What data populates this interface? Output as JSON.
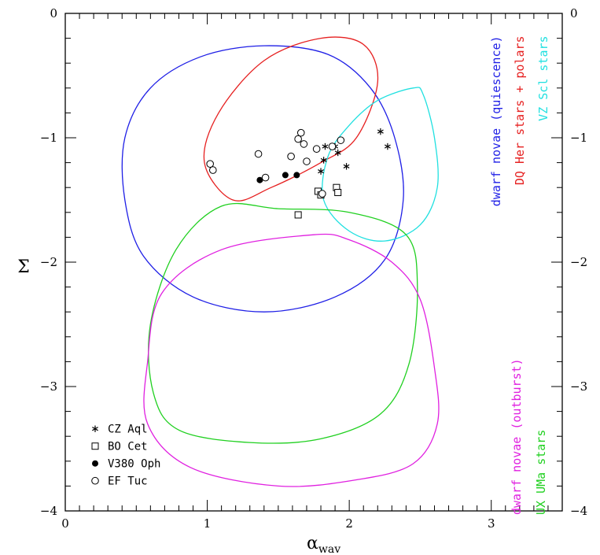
{
  "chart_data": {
    "type": "scatter",
    "title": "",
    "xlabel": "α",
    "xlabel_sub": "wav",
    "ylabel": "Σ",
    "xlim": [
      0,
      3.5
    ],
    "ylim": [
      -4,
      0
    ],
    "xticks": [
      0,
      1,
      2,
      3
    ],
    "yticks": [
      0,
      -1,
      -2,
      -3,
      -4
    ],
    "series": [
      {
        "name": "CZ Aql",
        "marker": "asterisk",
        "points": [
          [
            1.83,
            -1.07
          ],
          [
            1.82,
            -1.18
          ],
          [
            1.8,
            -1.27
          ],
          [
            1.92,
            -1.12
          ],
          [
            1.9,
            -1.07
          ],
          [
            1.98,
            -1.23
          ],
          [
            2.22,
            -0.95
          ],
          [
            2.27,
            -1.07
          ]
        ]
      },
      {
        "name": "BO Cet",
        "marker": "open-square",
        "points": [
          [
            1.64,
            -1.62
          ],
          [
            1.78,
            -1.43
          ],
          [
            1.8,
            -1.46
          ],
          [
            1.91,
            -1.4
          ],
          [
            1.92,
            -1.44
          ]
        ]
      },
      {
        "name": "V380 Oph",
        "marker": "filled-circle",
        "points": [
          [
            1.37,
            -1.34
          ],
          [
            1.55,
            -1.3
          ],
          [
            1.63,
            -1.3
          ]
        ]
      },
      {
        "name": "EF Tuc",
        "marker": "open-circle",
        "points": [
          [
            1.02,
            -1.21
          ],
          [
            1.04,
            -1.26
          ],
          [
            1.36,
            -1.13
          ],
          [
            1.41,
            -1.32
          ],
          [
            1.59,
            -1.15
          ],
          [
            1.64,
            -1.01
          ],
          [
            1.66,
            -0.96
          ],
          [
            1.68,
            -1.05
          ],
          [
            1.7,
            -1.19
          ],
          [
            1.77,
            -1.09
          ],
          [
            1.81,
            -1.45
          ],
          [
            1.88,
            -1.07
          ],
          [
            1.94,
            -1.02
          ]
        ]
      }
    ],
    "regions": [
      {
        "name": "dwarf novae (quiescence)",
        "color": "#1f1fe6",
        "outline": [
          [
            1.4,
            -0.26
          ],
          [
            0.95,
            -0.35
          ],
          [
            0.6,
            -0.6
          ],
          [
            0.42,
            -1.0
          ],
          [
            0.42,
            -1.5
          ],
          [
            0.55,
            -1.95
          ],
          [
            0.9,
            -2.28
          ],
          [
            1.4,
            -2.4
          ],
          [
            1.9,
            -2.28
          ],
          [
            2.25,
            -1.98
          ],
          [
            2.38,
            -1.5
          ],
          [
            2.32,
            -1.0
          ],
          [
            2.15,
            -0.6
          ],
          [
            1.85,
            -0.33
          ]
        ]
      },
      {
        "name": "DQ Her stars + polars",
        "color": "#e62020",
        "outline": [
          [
            1.8,
            -0.2
          ],
          [
            1.4,
            -0.38
          ],
          [
            1.08,
            -0.8
          ],
          [
            0.98,
            -1.2
          ],
          [
            1.18,
            -1.5
          ],
          [
            1.45,
            -1.4
          ],
          [
            1.8,
            -1.2
          ],
          [
            2.05,
            -1.0
          ],
          [
            2.2,
            -0.55
          ],
          [
            2.1,
            -0.25
          ]
        ]
      },
      {
        "name": "VZ Scl stars",
        "color": "#20e0e0",
        "outline": [
          [
            2.45,
            -0.6
          ],
          [
            2.2,
            -0.7
          ],
          [
            2.0,
            -0.9
          ],
          [
            1.85,
            -1.15
          ],
          [
            1.82,
            -1.5
          ],
          [
            2.0,
            -1.75
          ],
          [
            2.25,
            -1.83
          ],
          [
            2.5,
            -1.7
          ],
          [
            2.62,
            -1.4
          ],
          [
            2.6,
            -1.0
          ],
          [
            2.52,
            -0.65
          ]
        ]
      },
      {
        "name": "UX UMa stars",
        "color": "#20d020",
        "outline": [
          [
            1.1,
            -1.55
          ],
          [
            0.78,
            -1.9
          ],
          [
            0.6,
            -2.5
          ],
          [
            0.62,
            -3.05
          ],
          [
            0.8,
            -3.35
          ],
          [
            1.3,
            -3.45
          ],
          [
            1.8,
            -3.42
          ],
          [
            2.22,
            -3.22
          ],
          [
            2.42,
            -2.82
          ],
          [
            2.48,
            -2.2
          ],
          [
            2.4,
            -1.78
          ],
          [
            2.0,
            -1.6
          ],
          [
            1.5,
            -1.57
          ]
        ]
      },
      {
        "name": "dwarf novae (outburst)",
        "color": "#e020e0",
        "outline": [
          [
            1.75,
            -1.78
          ],
          [
            1.1,
            -1.9
          ],
          [
            0.68,
            -2.25
          ],
          [
            0.58,
            -2.8
          ],
          [
            0.58,
            -3.3
          ],
          [
            0.88,
            -3.65
          ],
          [
            1.5,
            -3.8
          ],
          [
            2.05,
            -3.75
          ],
          [
            2.45,
            -3.62
          ],
          [
            2.62,
            -3.3
          ],
          [
            2.6,
            -2.85
          ],
          [
            2.5,
            -2.3
          ],
          [
            2.3,
            -2.0
          ],
          [
            2.0,
            -1.82
          ]
        ]
      }
    ],
    "legend": {
      "position": "bottom-left",
      "entries": [
        "CZ Aql",
        "BO Cet",
        "V380 Oph",
        "EF Tuc"
      ]
    },
    "annotations": [
      {
        "text": "dwarf novae (quiescence)",
        "color": "#1f1fe6",
        "position": "top-right"
      },
      {
        "text": "DQ Her stars + polars",
        "color": "#e62020",
        "position": "top-right"
      },
      {
        "text": "VZ Scl stars",
        "color": "#20e0e0",
        "position": "top-right"
      },
      {
        "text": "dwarf novae (outburst)",
        "color": "#e020e0",
        "position": "bottom-right"
      },
      {
        "text": "UX UMa stars",
        "color": "#20d020",
        "position": "bottom-right"
      }
    ]
  }
}
